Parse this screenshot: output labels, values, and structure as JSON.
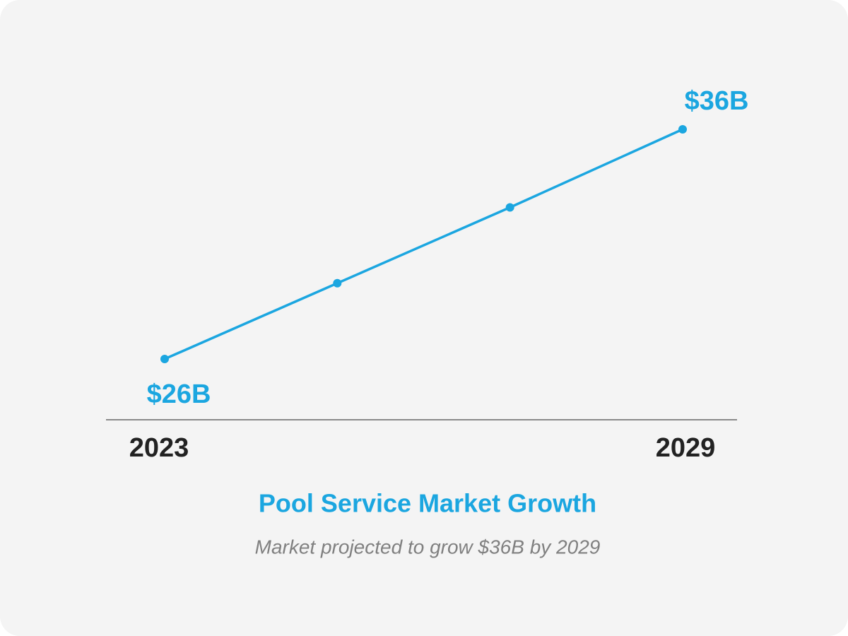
{
  "chart_data": {
    "type": "line",
    "title": "Pool Service Market Growth",
    "subtitle": "Market projected to grow $36B by 2029",
    "categories": [
      "2023",
      null,
      null,
      "2029"
    ],
    "series": [
      {
        "color": "#1ba6e0",
        "values": [
          26,
          29.3,
          32.6,
          36
        ],
        "value_labels": [
          "$26B",
          null,
          null,
          "$36B"
        ]
      }
    ]
  }
}
